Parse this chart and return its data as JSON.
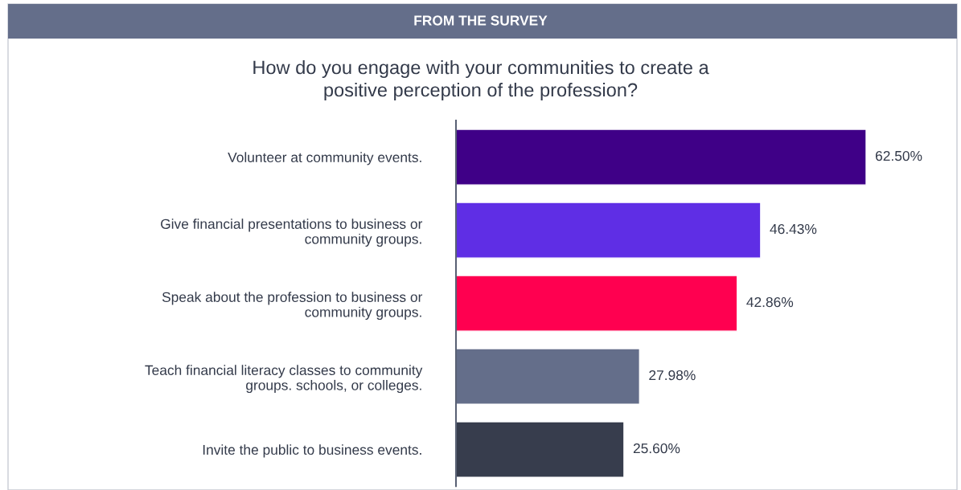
{
  "chart_data": {
    "type": "bar",
    "orientation": "horizontal",
    "title": "How do you engage with your communities to create a\npositive perception of the profession?",
    "annotations": [
      "FROM THE SURVEY"
    ],
    "categories": [
      "Volunteer at community events.",
      "Give financial presentations to business or\ncommunity groups.",
      "Speak about the profession to business or\ncommunity groups.",
      "Teach financial literacy classes to community\ngroups. schools, or colleges.",
      "Invite the public to business events."
    ],
    "values": [
      62.5,
      46.43,
      42.86,
      27.98,
      25.6
    ],
    "colors": [
      "#3f0087",
      "#5f2ee5",
      "#ff0050",
      "#646e8a",
      "#373d4d"
    ],
    "value_labels": [
      "62.50%",
      "46.43%",
      "42.86%",
      "27.98%",
      "25.60%"
    ],
    "tick_labels": "y",
    "grid": false
  }
}
